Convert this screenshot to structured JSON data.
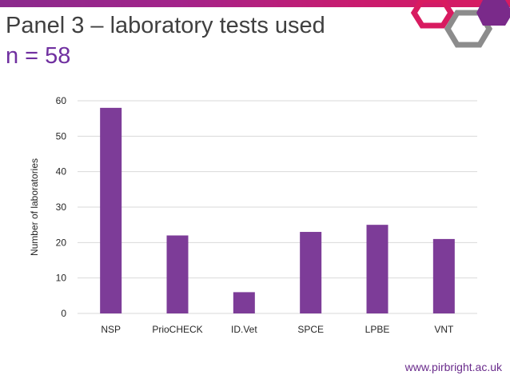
{
  "header": {
    "title": "Panel 3 – laboratory tests used",
    "subtitle": "n = 58"
  },
  "footer": {
    "url": "www.pirbright.ac.uk"
  },
  "colors": {
    "bar": "#7d3c98",
    "accent_purple": "#7030a0",
    "accent_magenta": "#d81b60",
    "grid": "#d9d9d9"
  },
  "chart_data": {
    "type": "bar",
    "categories": [
      "NSP",
      "PrioCHECK",
      "ID.Vet",
      "SPCE",
      "LPBE",
      "VNT"
    ],
    "values": [
      58,
      22,
      6,
      23,
      25,
      21
    ],
    "title": "",
    "xlabel": "",
    "ylabel": "Number of laboratories",
    "ylim": [
      0,
      60
    ],
    "yticks": [
      0,
      10,
      20,
      30,
      40,
      50,
      60
    ],
    "grid": true,
    "legend": "none"
  }
}
